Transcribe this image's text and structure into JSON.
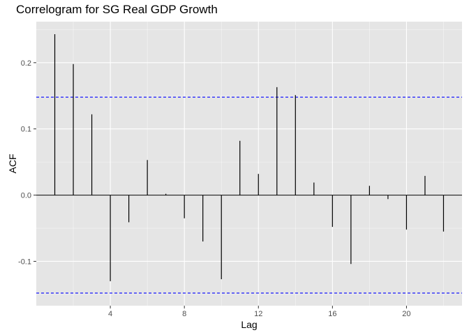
{
  "chart_data": {
    "type": "bar",
    "title": "Correlogram for SG Real GDP Growth",
    "xlabel": "Lag",
    "ylabel": "ACF",
    "lags": [
      1,
      2,
      3,
      4,
      5,
      6,
      7,
      8,
      9,
      10,
      11,
      12,
      13,
      14,
      15,
      16,
      17,
      18,
      19,
      20,
      21,
      22
    ],
    "values": [
      0.243,
      0.198,
      0.122,
      -0.13,
      -0.041,
      0.053,
      0.002,
      -0.035,
      -0.07,
      -0.127,
      0.082,
      0.032,
      0.163,
      0.151,
      0.019,
      -0.048,
      -0.104,
      0.014,
      -0.006,
      -0.052,
      0.029,
      -0.055
    ],
    "confidence_bound": 0.148,
    "xlim": [
      0,
      23
    ],
    "ylim": [
      -0.167,
      0.262
    ],
    "x_ticks": [
      4,
      8,
      12,
      16,
      20
    ],
    "y_ticks": [
      -0.1,
      0.0,
      0.1,
      0.2
    ],
    "y_tick_labels": [
      "-0.1",
      "0.0",
      "0.1",
      "0.2"
    ],
    "grid": true,
    "colors": {
      "panel": "#e5e5e5",
      "grid_major": "#ffffff",
      "bar": "#000000",
      "confidence": "#0000ff"
    }
  }
}
